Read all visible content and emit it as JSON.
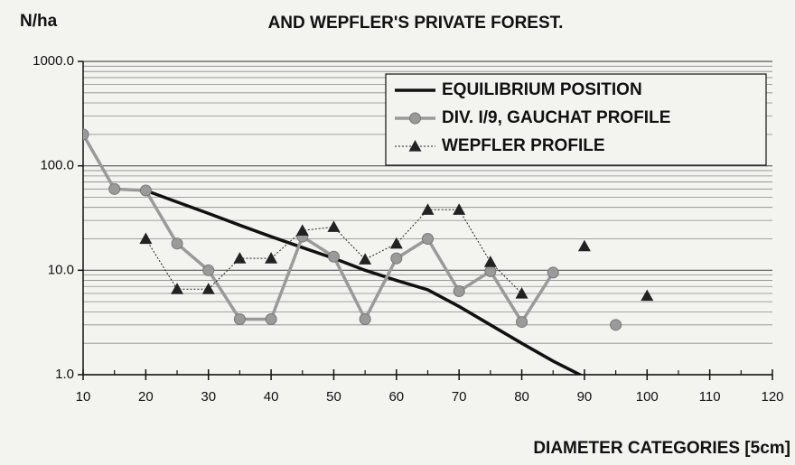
{
  "chart_data": {
    "type": "line",
    "title": "AND WEPFLER'S PRIVATE FOREST.",
    "y_label": "N/ha",
    "x_label": "DIAMETER CATEGORIES [5cm]",
    "log_y": true,
    "grid": true,
    "minor_grid": true,
    "legend": "upper right",
    "xlim": [
      10,
      120
    ],
    "xticks": [
      10,
      20,
      30,
      40,
      50,
      60,
      70,
      80,
      90,
      100,
      110,
      120
    ],
    "ylim": [
      1,
      1000
    ],
    "yticks": [
      {
        "value": 1,
        "label": "1.0"
      },
      {
        "value": 10,
        "label": "10.0"
      },
      {
        "value": 100,
        "label": "100.0"
      },
      {
        "value": 1000,
        "label": "1000.0"
      }
    ],
    "x": [
      10,
      15,
      20,
      25,
      30,
      35,
      40,
      45,
      50,
      55,
      60,
      65,
      70,
      75,
      80,
      85,
      90,
      95,
      100
    ],
    "series": [
      {
        "name": "EQUILIBRIUM POSITION",
        "color": "#111111",
        "marker": "none",
        "line_style": "solid",
        "line_width": 3.5,
        "values": [
          null,
          null,
          58,
          45,
          35,
          27,
          21,
          16.5,
          13,
          10,
          8,
          6.5,
          4.5,
          3,
          2,
          1.35,
          0.95,
          0.75,
          null
        ]
      },
      {
        "name": "DIV. I/9, GAUCHAT PROFILE",
        "color": "#9a9a9a",
        "marker": "circle",
        "line_style": "solid",
        "line_width": 3.5,
        "values": [
          200,
          60,
          58,
          18,
          10,
          3.4,
          3.4,
          21,
          13.5,
          3.4,
          13,
          20,
          6.3,
          9.8,
          3.2,
          9.5,
          null,
          3,
          null
        ]
      },
      {
        "name": "WEPFLER PROFILE",
        "color": "#222222",
        "marker": "triangle",
        "line_style": "dotted",
        "line_width": 1,
        "values": [
          null,
          null,
          20,
          6.6,
          6.6,
          13,
          13,
          24,
          26,
          12.7,
          18,
          38,
          38,
          12,
          6,
          null,
          17,
          null,
          5.7
        ]
      }
    ]
  }
}
